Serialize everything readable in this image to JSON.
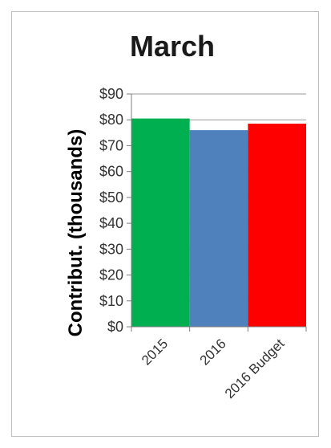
{
  "chart_data": {
    "type": "bar",
    "title": "March",
    "xlabel": "",
    "ylabel": "Contribut. (thousands)",
    "categories": [
      "2015",
      "2016",
      "2016 Budget"
    ],
    "values": [
      80.5,
      76,
      78.5
    ],
    "ylim": [
      0,
      90
    ],
    "yticks": [
      "$0",
      "$10",
      "$20",
      "$30",
      "$40",
      "$50",
      "$60",
      "$70",
      "$80",
      "$90"
    ],
    "colors": [
      "#00b050",
      "#4f81bd",
      "#ff0000"
    ],
    "grid": true,
    "legend": "none"
  }
}
